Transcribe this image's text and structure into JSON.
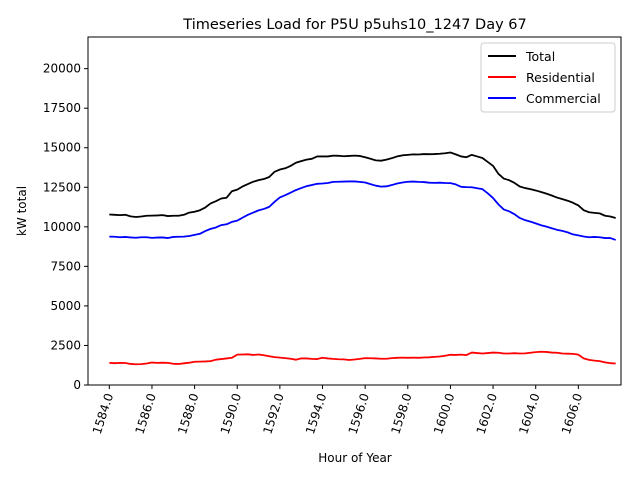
{
  "chart_data": {
    "type": "line",
    "title": "Timeseries Load for P5U p5uhs10_1247  Day 67",
    "xlabel": "Hour of Year",
    "ylabel": "kW total",
    "xlim": [
      1583.0,
      1608.0
    ],
    "ylim": [
      0,
      22000
    ],
    "x_ticks": [
      1584,
      1586,
      1588,
      1590,
      1592,
      1594,
      1596,
      1598,
      1600,
      1602,
      1604,
      1606
    ],
    "x_tick_labels": [
      "1584.0",
      "1586.0",
      "1588.0",
      "1590.0",
      "1592.0",
      "1594.0",
      "1596.0",
      "1598.0",
      "1600.0",
      "1602.0",
      "1604.0",
      "1606.0"
    ],
    "y_ticks": [
      0,
      2500,
      5000,
      7500,
      10000,
      12500,
      15000,
      17500,
      20000
    ],
    "y_tick_labels": [
      "0",
      "2500",
      "5000",
      "7500",
      "10000",
      "12500",
      "15000",
      "17500",
      "20000"
    ],
    "legend_position": "top-right",
    "x": [
      1584.0,
      1584.25,
      1584.5,
      1584.75,
      1585.0,
      1585.25,
      1585.5,
      1585.75,
      1586.0,
      1586.25,
      1586.5,
      1586.75,
      1587.0,
      1587.25,
      1587.5,
      1587.75,
      1588.0,
      1588.25,
      1588.5,
      1588.75,
      1589.0,
      1589.25,
      1589.5,
      1589.75,
      1590.0,
      1590.25,
      1590.5,
      1590.75,
      1591.0,
      1591.25,
      1591.5,
      1591.75,
      1592.0,
      1592.25,
      1592.5,
      1592.75,
      1593.0,
      1593.25,
      1593.5,
      1593.75,
      1594.0,
      1594.25,
      1594.5,
      1594.75,
      1595.0,
      1595.25,
      1595.5,
      1595.75,
      1596.0,
      1596.25,
      1596.5,
      1596.75,
      1597.0,
      1597.25,
      1597.5,
      1597.75,
      1598.0,
      1598.25,
      1598.5,
      1598.75,
      1599.0,
      1599.25,
      1599.5,
      1599.75,
      1600.0,
      1600.25,
      1600.5,
      1600.75,
      1601.0,
      1601.25,
      1601.5,
      1601.75,
      1602.0,
      1602.25,
      1602.5,
      1602.75,
      1603.0,
      1603.25,
      1603.5,
      1603.75,
      1604.0,
      1604.25,
      1604.5,
      1604.75,
      1605.0,
      1605.25,
      1605.5,
      1605.75,
      1606.0,
      1606.25,
      1606.5,
      1606.75,
      1607.0,
      1607.25,
      1607.5,
      1607.75
    ],
    "series": [
      {
        "name": "Total",
        "color": "#000000",
        "values": [
          10780,
          10760,
          10740,
          10760,
          10660,
          10620,
          10650,
          10700,
          10710,
          10720,
          10740,
          10680,
          10700,
          10700,
          10760,
          10900,
          10950,
          11050,
          11220,
          11480,
          11620,
          11790,
          11840,
          12250,
          12350,
          12550,
          12700,
          12850,
          12950,
          13020,
          13150,
          13480,
          13620,
          13700,
          13850,
          14050,
          14150,
          14250,
          14300,
          14450,
          14450,
          14450,
          14500,
          14490,
          14460,
          14480,
          14500,
          14480,
          14400,
          14300,
          14200,
          14180,
          14250,
          14340,
          14450,
          14520,
          14550,
          14580,
          14570,
          14600,
          14590,
          14600,
          14620,
          14650,
          14700,
          14580,
          14450,
          14400,
          14550,
          14450,
          14350,
          14100,
          13850,
          13350,
          13050,
          12950,
          12780,
          12550,
          12450,
          12380,
          12300,
          12200,
          12100,
          11980,
          11850,
          11750,
          11650,
          11520,
          11350,
          11050,
          10920,
          10880,
          10850,
          10700,
          10650,
          10560
        ]
      },
      {
        "name": "Residential",
        "color": "#ff0000",
        "values": [
          1400,
          1380,
          1400,
          1390,
          1330,
          1310,
          1320,
          1360,
          1420,
          1400,
          1410,
          1400,
          1340,
          1330,
          1370,
          1410,
          1470,
          1480,
          1490,
          1510,
          1600,
          1640,
          1680,
          1720,
          1920,
          1930,
          1940,
          1900,
          1930,
          1880,
          1820,
          1760,
          1730,
          1700,
          1660,
          1600,
          1680,
          1680,
          1650,
          1640,
          1720,
          1680,
          1650,
          1630,
          1620,
          1580,
          1610,
          1650,
          1700,
          1690,
          1680,
          1660,
          1660,
          1700,
          1720,
          1730,
          1720,
          1730,
          1720,
          1740,
          1750,
          1780,
          1800,
          1850,
          1910,
          1900,
          1920,
          1890,
          2050,
          2020,
          1990,
          2020,
          2050,
          2040,
          1990,
          1990,
          2010,
          1990,
          2000,
          2040,
          2080,
          2100,
          2090,
          2050,
          2040,
          1990,
          1980,
          1970,
          1920,
          1680,
          1590,
          1540,
          1510,
          1430,
          1380,
          1360
        ]
      },
      {
        "name": "Commercial",
        "color": "#0000ff",
        "values": [
          9380,
          9370,
          9340,
          9360,
          9330,
          9310,
          9340,
          9340,
          9300,
          9320,
          9330,
          9290,
          9360,
          9370,
          9380,
          9420,
          9490,
          9560,
          9730,
          9870,
          9960,
          10110,
          10160,
          10310,
          10390,
          10580,
          10760,
          10900,
          11040,
          11130,
          11260,
          11580,
          11860,
          12000,
          12160,
          12320,
          12450,
          12570,
          12640,
          12720,
          12740,
          12770,
          12840,
          12850,
          12860,
          12870,
          12870,
          12840,
          12800,
          12700,
          12600,
          12540,
          12560,
          12640,
          12740,
          12800,
          12850,
          12860,
          12840,
          12830,
          12790,
          12780,
          12790,
          12770,
          12760,
          12680,
          12530,
          12510,
          12500,
          12440,
          12380,
          12120,
          11820,
          11420,
          11100,
          10980,
          10800,
          10560,
          10420,
          10330,
          10220,
          10100,
          10010,
          9910,
          9810,
          9740,
          9650,
          9520,
          9460,
          9390,
          9340,
          9360,
          9340,
          9290,
          9290,
          9170
        ]
      }
    ]
  }
}
